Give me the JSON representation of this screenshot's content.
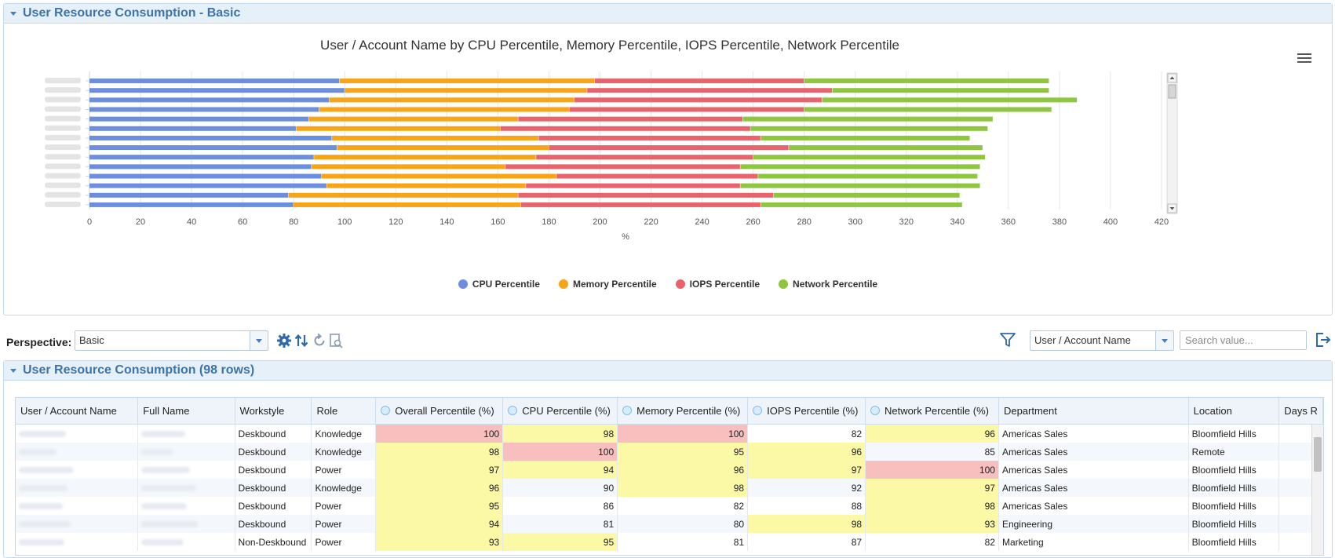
{
  "top_panel": {
    "title": "User Resource Consumption - Basic"
  },
  "chart_data": {
    "type": "bar",
    "orientation": "horizontal",
    "stacked": true,
    "title": "User / Account Name by CPU Percentile, Memory Percentile, IOPS Percentile, Network Percentile",
    "xlabel": "%",
    "xlim": [
      0,
      420
    ],
    "x_ticks": [
      "0",
      "20",
      "40",
      "60",
      "80",
      "100",
      "120",
      "140",
      "160",
      "180",
      "200",
      "220",
      "240",
      "260",
      "280",
      "300",
      "320",
      "340",
      "360",
      "380",
      "400",
      "420"
    ],
    "categories_note": "category labels are blurred in original",
    "series": [
      {
        "name": "CPU Percentile",
        "color": "#6b8fde",
        "values": [
          98,
          100,
          94,
          90,
          86,
          81,
          95,
          97,
          88,
          87,
          91,
          93,
          78,
          80
        ]
      },
      {
        "name": "Memory Percentile",
        "color": "#f7a416",
        "values": [
          100,
          95,
          96,
          98,
          82,
          80,
          81,
          83,
          87,
          76,
          92,
          78,
          90,
          89
        ]
      },
      {
        "name": "IOPS Percentile",
        "color": "#e8636b",
        "values": [
          82,
          96,
          97,
          92,
          88,
          98,
          87,
          94,
          85,
          92,
          79,
          84,
          100,
          94
        ]
      },
      {
        "name": "Network Percentile",
        "color": "#8fc63f",
        "values": [
          96,
          85,
          100,
          97,
          98,
          93,
          82,
          76,
          91,
          94,
          86,
          94,
          73,
          79
        ]
      }
    ],
    "grid": true,
    "legend_position": "bottom-center"
  },
  "toolbar": {
    "perspective_label": "Perspective:",
    "perspective_value": "Basic",
    "filter_field_value": "User / Account Name",
    "search_placeholder": "Search value..."
  },
  "table_panel": {
    "title": "User Resource Consumption (98 rows)",
    "columns": [
      "User / Account Name",
      "Full Name",
      "Workstyle",
      "Role",
      "Overall Percentile (%)",
      "CPU Percentile (%)",
      "Memory Percentile (%)",
      "IOPS Percentile (%)",
      "Network Percentile (%)",
      "Department",
      "Location",
      "Days R"
    ],
    "rows": [
      {
        "workstyle": "Deskbound",
        "role": "Knowledge",
        "overall": "100",
        "cpu": "98",
        "mem": "100",
        "iops": "82",
        "net": "96",
        "dept": "Americas Sales",
        "loc": "Bloomfield Hills"
      },
      {
        "workstyle": "Deskbound",
        "role": "Knowledge",
        "overall": "98",
        "cpu": "100",
        "mem": "95",
        "iops": "96",
        "net": "85",
        "dept": "Americas Sales",
        "loc": "Remote"
      },
      {
        "workstyle": "Deskbound",
        "role": "Power",
        "overall": "97",
        "cpu": "94",
        "mem": "96",
        "iops": "97",
        "net": "100",
        "dept": "Americas Sales",
        "loc": "Bloomfield Hills"
      },
      {
        "workstyle": "Deskbound",
        "role": "Knowledge",
        "overall": "96",
        "cpu": "90",
        "mem": "98",
        "iops": "92",
        "net": "97",
        "dept": "Americas Sales",
        "loc": "Bloomfield Hills"
      },
      {
        "workstyle": "Deskbound",
        "role": "Power",
        "overall": "95",
        "cpu": "86",
        "mem": "82",
        "iops": "88",
        "net": "98",
        "dept": "Americas Sales",
        "loc": "Bloomfield Hills"
      },
      {
        "workstyle": "Deskbound",
        "role": "Power",
        "overall": "94",
        "cpu": "81",
        "mem": "80",
        "iops": "98",
        "net": "93",
        "dept": "Engineering",
        "loc": "Bloomfield Hills"
      },
      {
        "workstyle": "Non-Deskbound",
        "role": "Power",
        "overall": "93",
        "cpu": "95",
        "mem": "81",
        "iops": "87",
        "net": "82",
        "dept": "Marketing",
        "loc": "Bloomfield Hills"
      }
    ]
  }
}
